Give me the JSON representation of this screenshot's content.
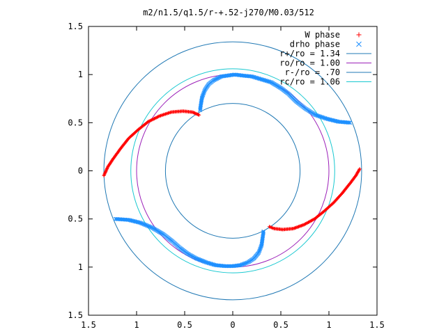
{
  "chart_data": {
    "type": "scatter",
    "title": "m2/n1.5/q1.5/r-+.52-j270/M0.03/512",
    "xlabel": "",
    "ylabel": "",
    "xlim": [
      -1.5,
      1.5
    ],
    "ylim": [
      -1.5,
      1.5
    ],
    "x_ticks": [
      -1.5,
      -1,
      -0.5,
      0,
      0.5,
      1,
      1.5
    ],
    "y_ticks": [
      -1.5,
      -1,
      -0.5,
      0,
      0.5,
      1,
      1.5
    ],
    "x_tick_labels": [
      "1.5",
      "1",
      "0.5",
      "0",
      "0.5",
      "1",
      "1.5"
    ],
    "y_tick_labels": [
      "1.5",
      "1",
      "0.5",
      "0",
      "0.5",
      "1",
      "1.5"
    ],
    "grid": false,
    "legend_position": "top-right",
    "series": [
      {
        "name": "W phase",
        "marker": "+",
        "color": "#ff0000",
        "curves": [
          {
            "points": [
              [
                -1.34,
                -0.05
              ],
              [
                -1.3,
                0.04
              ],
              [
                -1.24,
                0.13
              ],
              [
                -1.16,
                0.24
              ],
              [
                -1.08,
                0.34
              ],
              [
                -0.98,
                0.43
              ],
              [
                -0.88,
                0.51
              ],
              [
                -0.76,
                0.57
              ],
              [
                -0.64,
                0.61
              ],
              [
                -0.52,
                0.62
              ],
              [
                -0.42,
                0.61
              ],
              [
                -0.35,
                0.58
              ]
            ]
          },
          {
            "points": [
              [
                1.32,
                0.02
              ],
              [
                1.28,
                -0.05
              ],
              [
                1.22,
                -0.13
              ],
              [
                1.14,
                -0.23
              ],
              [
                1.05,
                -0.33
              ],
              [
                0.95,
                -0.42
              ],
              [
                0.85,
                -0.5
              ],
              [
                0.74,
                -0.56
              ],
              [
                0.63,
                -0.6
              ],
              [
                0.52,
                -0.61
              ],
              [
                0.43,
                -0.6
              ],
              [
                0.38,
                -0.58
              ]
            ]
          }
        ]
      },
      {
        "name": "drho phase",
        "marker": "x",
        "color": "#1e90ff",
        "curves": [
          {
            "points": [
              [
                -0.34,
                0.63
              ],
              [
                -0.33,
                0.7
              ],
              [
                -0.32,
                0.76
              ],
              [
                -0.29,
                0.84
              ],
              [
                -0.25,
                0.9
              ],
              [
                -0.2,
                0.94
              ],
              [
                -0.12,
                0.98
              ],
              [
                -0.05,
                0.99
              ],
              [
                0.02,
                1.0
              ],
              [
                0.1,
                0.99
              ],
              [
                0.2,
                0.98
              ],
              [
                0.3,
                0.95
              ],
              [
                0.4,
                0.92
              ],
              [
                0.5,
                0.86
              ],
              [
                0.58,
                0.8
              ],
              [
                0.66,
                0.72
              ],
              [
                0.75,
                0.65
              ],
              [
                0.86,
                0.58
              ],
              [
                0.98,
                0.54
              ],
              [
                1.1,
                0.51
              ],
              [
                1.22,
                0.5
              ]
            ]
          },
          {
            "points": [
              [
                0.32,
                -0.63
              ],
              [
                0.31,
                -0.7
              ],
              [
                0.3,
                -0.77
              ],
              [
                0.27,
                -0.85
              ],
              [
                0.22,
                -0.91
              ],
              [
                0.16,
                -0.95
              ],
              [
                0.08,
                -0.98
              ],
              [
                0.0,
                -0.99
              ],
              [
                -0.08,
                -0.99
              ],
              [
                -0.18,
                -0.98
              ],
              [
                -0.28,
                -0.95
              ],
              [
                -0.38,
                -0.91
              ],
              [
                -0.47,
                -0.86
              ],
              [
                -0.55,
                -0.8
              ],
              [
                -0.63,
                -0.73
              ],
              [
                -0.72,
                -0.66
              ],
              [
                -0.84,
                -0.59
              ],
              [
                -0.96,
                -0.54
              ],
              [
                -1.08,
                -0.51
              ],
              [
                -1.22,
                -0.5
              ]
            ]
          }
        ]
      },
      {
        "name": "r+/ro = 1.34",
        "kind": "circle",
        "radius": 1.34,
        "color": "#1f78b4"
      },
      {
        "name": "ro/ro = 1.00",
        "kind": "circle",
        "radius": 1.0,
        "color": "#9b1fb8"
      },
      {
        "name": "r-/ro = .70",
        "kind": "circle",
        "radius": 0.7,
        "color": "#1f78b4"
      },
      {
        "name": "rc/ro = 1.06",
        "kind": "circle",
        "radius": 1.06,
        "color": "#17c8d0"
      }
    ]
  }
}
